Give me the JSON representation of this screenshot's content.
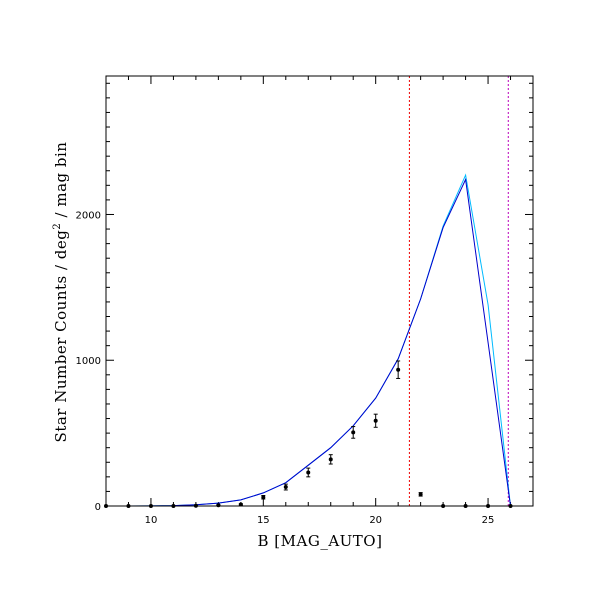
{
  "chart_data": {
    "type": "line",
    "xlabel": "B [MAG_AUTO]",
    "ylabel_main": "Star Number Counts  / deg",
    "ylabel_sup": "2",
    "ylabel_tail": " / mag bin",
    "xlim": [
      8,
      27
    ],
    "ylim": [
      0,
      2950
    ],
    "x_major_ticks": [
      10,
      15,
      20,
      25
    ],
    "y_major_ticks": [
      0,
      1000,
      2000
    ],
    "x_tick_labels": [
      "10",
      "15",
      "20",
      "25"
    ],
    "y_tick_labels": [
      "0",
      "1000",
      "2000"
    ],
    "grid": false,
    "legend": false,
    "colors": {
      "model_primary": "#0000cc",
      "model_secondary": "#00bbff",
      "observed": "#000000",
      "vline_limit": "#ee0000",
      "vline_cut": "#bb00bb"
    },
    "series": [
      {
        "style": "line",
        "color_key": "model_secondary",
        "x": [
          8,
          9,
          10,
          11,
          12,
          13,
          14,
          15,
          16,
          17,
          18,
          19,
          20,
          21,
          22,
          23,
          24,
          25,
          26
        ],
        "y": [
          0,
          0,
          1,
          3,
          8,
          20,
          42,
          90,
          160,
          280,
          400,
          550,
          740,
          1010,
          1420,
          1920,
          2270,
          1380,
          0
        ]
      },
      {
        "style": "line",
        "color_key": "model_primary",
        "x": [
          8,
          9,
          10,
          11,
          12,
          13,
          14,
          15,
          16,
          17,
          18,
          19,
          20,
          21,
          22,
          23,
          24,
          25,
          26
        ],
        "y": [
          0,
          0,
          1,
          3,
          8,
          20,
          42,
          90,
          160,
          280,
          400,
          550,
          740,
          1010,
          1420,
          1910,
          2240,
          1120,
          0
        ]
      },
      {
        "style": "points",
        "color_key": "observed",
        "x": [
          8,
          9,
          10,
          11,
          12,
          13,
          14,
          15,
          16,
          17,
          18,
          19,
          20,
          21,
          22,
          23,
          24,
          25,
          26
        ],
        "y": [
          0,
          0,
          0,
          0,
          2,
          5,
          10,
          60,
          130,
          230,
          320,
          505,
          585,
          935,
          80,
          0,
          0,
          0,
          0
        ],
        "err": [
          0,
          0,
          0,
          0,
          2,
          3,
          5,
          12,
          20,
          30,
          32,
          40,
          45,
          60,
          12,
          0,
          0,
          0,
          0
        ]
      }
    ],
    "vlines": [
      {
        "x": 21.5,
        "color_key": "vline_limit"
      },
      {
        "x": 25.9,
        "color_key": "vline_cut"
      }
    ]
  }
}
